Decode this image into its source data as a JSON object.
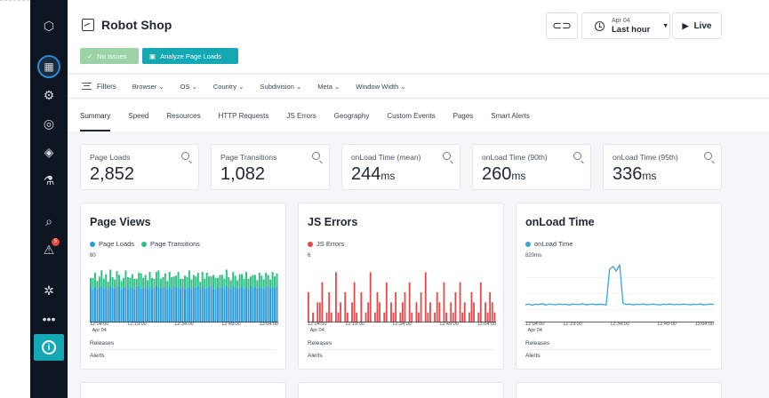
{
  "header": {
    "title": "Robot Shop",
    "no_issues_label": "No Issues",
    "analyze_label": "Analyze Page Loads",
    "time_date": "Apr 04",
    "time_range": "Last hour",
    "live_label": "Live"
  },
  "sidebar": {
    "alert_badge": "5",
    "info_glyph": "i"
  },
  "filters": {
    "label": "Filters",
    "items": [
      "Browser",
      "OS",
      "Country",
      "Subdivision",
      "Meta",
      "Window Width"
    ]
  },
  "tabs": [
    "Summary",
    "Speed",
    "Resources",
    "HTTP Requests",
    "JS Errors",
    "Geography",
    "Custom Events",
    "Pages",
    "Smart Alerts"
  ],
  "stats": [
    {
      "label": "Page Loads",
      "value": "2,852",
      "unit": ""
    },
    {
      "label": "Page Transitions",
      "value": "1,082",
      "unit": ""
    },
    {
      "label": "onLoad Time (mean)",
      "value": "244",
      "unit": "ms"
    },
    {
      "label": "onLoad Time (90th)",
      "value": "260",
      "unit": "ms"
    },
    {
      "label": "onLoad Time (95th)",
      "value": "336",
      "unit": "ms"
    }
  ],
  "cards": {
    "page_views": {
      "title": "Page Views",
      "ymax": "80",
      "releases": "Releases",
      "alerts": "Alerts"
    },
    "js_errors": {
      "title": "JS Errors",
      "ymax": "6",
      "releases": "Releases",
      "alerts": "Alerts"
    },
    "onload": {
      "title": "onLoad Time",
      "ymax": "820ms",
      "releases": "Releases",
      "alerts": "Alerts"
    }
  },
  "colors": {
    "page_loads": "#2b9ad8",
    "page_transitions": "#2fbf82",
    "js_errors": "#e8484a",
    "onload": "#3aa3de",
    "accent": "#14a7b4"
  },
  "chart_data": [
    {
      "type": "bar",
      "title": "Page Views",
      "ylim": [
        0,
        80
      ],
      "x_ticks": [
        "12:04:00\nApr 04",
        "12:19:00",
        "12:34:00",
        "12:49:00",
        "13:04:00"
      ],
      "series": [
        {
          "name": "Page Loads",
          "values": [
            47,
            45,
            48,
            44,
            46,
            49,
            45,
            47,
            44,
            48,
            46,
            45,
            49,
            47,
            44,
            46,
            48,
            45,
            47,
            46,
            44,
            48,
            49,
            45,
            46,
            47,
            45,
            48,
            44,
            46,
            49,
            47,
            45,
            46,
            48,
            44,
            47,
            45,
            49,
            46,
            48,
            45,
            47,
            44,
            46,
            48,
            45,
            47,
            46,
            49,
            44,
            48,
            45,
            46,
            47,
            49,
            45,
            44,
            48,
            46,
            47,
            45,
            49,
            46,
            44,
            48,
            47,
            45,
            46,
            48,
            45,
            47,
            44,
            49,
            46,
            48,
            45,
            47,
            46,
            44,
            48,
            49,
            45,
            47,
            46,
            48
          ]
        },
        {
          "name": "Page Transitions",
          "values": [
            12,
            14,
            18,
            11,
            15,
            20,
            13,
            17,
            10,
            22,
            14,
            12,
            19,
            16,
            11,
            13,
            21,
            15,
            12,
            18,
            14,
            10,
            17,
            20,
            13,
            16,
            11,
            19,
            15,
            12,
            18,
            22,
            13,
            14,
            17,
            11,
            20,
            15,
            12,
            16,
            19,
            13,
            11,
            18,
            14,
            21,
            12,
            16,
            15,
            17,
            10,
            19,
            13,
            20,
            14,
            12,
            18,
            15,
            11,
            17,
            16,
            13,
            21,
            14,
            12,
            19,
            15,
            11,
            18,
            16,
            13,
            20,
            14,
            12,
            17,
            15,
            11,
            19,
            16,
            13,
            18,
            14,
            12,
            20,
            15,
            17
          ]
        }
      ]
    },
    {
      "type": "bar",
      "title": "JS Errors",
      "ylim": [
        0,
        6
      ],
      "x_ticks": [
        "12:04:00\nApr 04",
        "12:19:00",
        "12:34:00",
        "12:49:00",
        "13:04:00"
      ],
      "series": [
        {
          "name": "JS Errors",
          "values": [
            3,
            0,
            1,
            0,
            2,
            2,
            4,
            0,
            1,
            3,
            1,
            0,
            5,
            1,
            2,
            0,
            3,
            1,
            0,
            2,
            4,
            1,
            0,
            3,
            0,
            1,
            2,
            5,
            0,
            1,
            3,
            2,
            0,
            1,
            4,
            0,
            2,
            1,
            3,
            0,
            1,
            2,
            3,
            0,
            4,
            1,
            0,
            2,
            1,
            3,
            0,
            5,
            1,
            2,
            0,
            1,
            3,
            2,
            0,
            4,
            1,
            0,
            2,
            1,
            3,
            0,
            4,
            1,
            2,
            0,
            1,
            3,
            2,
            0,
            1,
            4,
            0,
            2,
            1,
            3,
            2,
            1
          ]
        }
      ]
    },
    {
      "type": "line",
      "title": "onLoad Time",
      "ylim": [
        0,
        820
      ],
      "x_ticks": [
        "12:04:00\nApr 04",
        "12:19:00",
        "12:34:00",
        "12:49:00",
        "13:04:00"
      ],
      "series": [
        {
          "name": "onLoad Time",
          "values": [
            240,
            250,
            235,
            248,
            245,
            255,
            238,
            250,
            246,
            240,
            252,
            244,
            248,
            236,
            250,
            247,
            243,
            255,
            239,
            246,
            250,
            242,
            248,
            245,
            240,
            720,
            760,
            700,
            780,
            260,
            245,
            250,
            238,
            248,
            244,
            252,
            240,
            246,
            250,
            243,
            238,
            249,
            245,
            252,
            241,
            247,
            243,
            250,
            246,
            240,
            248,
            244,
            252,
            238,
            246,
            250,
            244
          ]
        }
      ]
    }
  ]
}
